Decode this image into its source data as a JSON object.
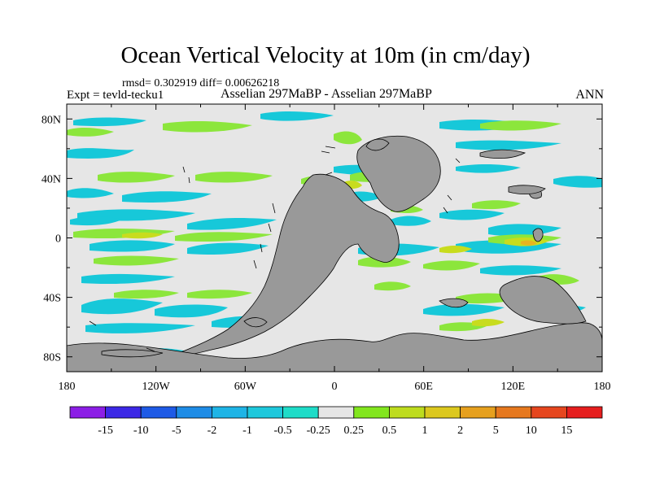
{
  "title": "Ocean Vertical Velocity at 10m (in cm/day)",
  "stats_line": "rmsd= 0.302919 diff= 0.00626218",
  "experiment_label": "Expt = tevld-tecku1",
  "comparison_label": "Asselian 297MaBP - Asselian 297MaBP",
  "season_label": "ANN",
  "colors": {
    "land": "#999999",
    "ocean_neutral": "#e6e6e6",
    "cyan": "#17c8d9",
    "teal": "#20d8c0",
    "green": "#8ce63c",
    "yellowgreen": "#c8dc1e",
    "orange": "#e6b420"
  },
  "map_axes": {
    "lon_labels": [
      "180",
      "120W",
      "60W",
      "0",
      "60E",
      "120E",
      "180"
    ],
    "lon_values": [
      -180,
      -120,
      -60,
      0,
      60,
      120,
      180
    ],
    "lat_labels": [
      "80N",
      "40N",
      "0",
      "40S",
      "80S"
    ],
    "lat_values": [
      80,
      40,
      0,
      -40,
      -80
    ],
    "lon_range": [
      -180,
      180
    ],
    "lat_range": [
      -90,
      90
    ]
  },
  "colorbar": {
    "labels": [
      "-15",
      "-10",
      "-5",
      "-2",
      "-1",
      "-0.5",
      "-0.25",
      "0.25",
      "0.5",
      "1",
      "2",
      "5",
      "10",
      "15"
    ],
    "colors": [
      "#8c1ee6",
      "#3c28e6",
      "#1e5ae6",
      "#1e8ce6",
      "#1eb4e6",
      "#1ec8dc",
      "#1edcc8",
      "#e6e6e6",
      "#82e61e",
      "#bedc1e",
      "#dcc81e",
      "#e6a01e",
      "#e6781e",
      "#e6461e",
      "#e61e1e"
    ]
  }
}
